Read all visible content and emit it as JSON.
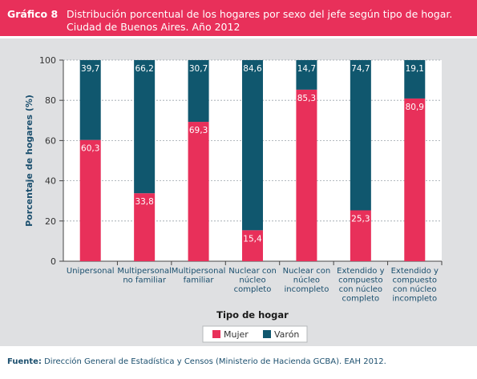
{
  "header": {
    "figure_number": "Gráfico 8",
    "title_line1": "Distribución porcentual de los hogares por sexo del jefe según tipo de hogar.",
    "title_line2": "Ciudad de Buenos Aires. Año 2012"
  },
  "footer": {
    "source_label": "Fuente:",
    "source_text": "Dirección General de Estadística y Censos (Ministerio de Hacienda GCBA). EAH 2012."
  },
  "colors": {
    "header_bg": "#e8305a",
    "panel_bg": "#dfe0e2",
    "mujer": "#e8305a",
    "varon": "#10576e",
    "axis_text": "#1b4f6e"
  },
  "chart_data": {
    "type": "bar",
    "stacked": true,
    "categories": [
      [
        "Unipersonal"
      ],
      [
        "Multipersonal",
        "no familiar"
      ],
      [
        "Multipersonal",
        "familiar"
      ],
      [
        "Nuclear con",
        "núcleo",
        "completo"
      ],
      [
        "Nuclear con",
        "núcleo",
        "incompleto"
      ],
      [
        "Extendido y",
        "compuesto",
        "con núcleo",
        "completo"
      ],
      [
        "Extendido y",
        "compuesto",
        "con núcleo",
        "incompleto"
      ]
    ],
    "series": [
      {
        "name": "Mujer",
        "values": [
          60.3,
          33.8,
          69.3,
          15.4,
          85.3,
          25.3,
          80.9
        ],
        "labels": [
          "60,3",
          "33,8",
          "69,3",
          "15,4",
          "85,3",
          "25,3",
          "80,9"
        ]
      },
      {
        "name": "Varón",
        "values": [
          39.7,
          66.2,
          30.7,
          84.6,
          14.7,
          74.7,
          19.1
        ],
        "labels": [
          "39,7",
          "66,2",
          "30,7",
          "84,6",
          "14,7",
          "74,7",
          "19,1"
        ]
      }
    ],
    "xlabel": "Tipo de hogar",
    "ylabel": "Porcentaje de hogares (%)",
    "ylim": [
      0,
      100
    ],
    "yticks": [
      0,
      20,
      40,
      60,
      80,
      100
    ],
    "grid": true,
    "legend_position": "bottom-center"
  }
}
